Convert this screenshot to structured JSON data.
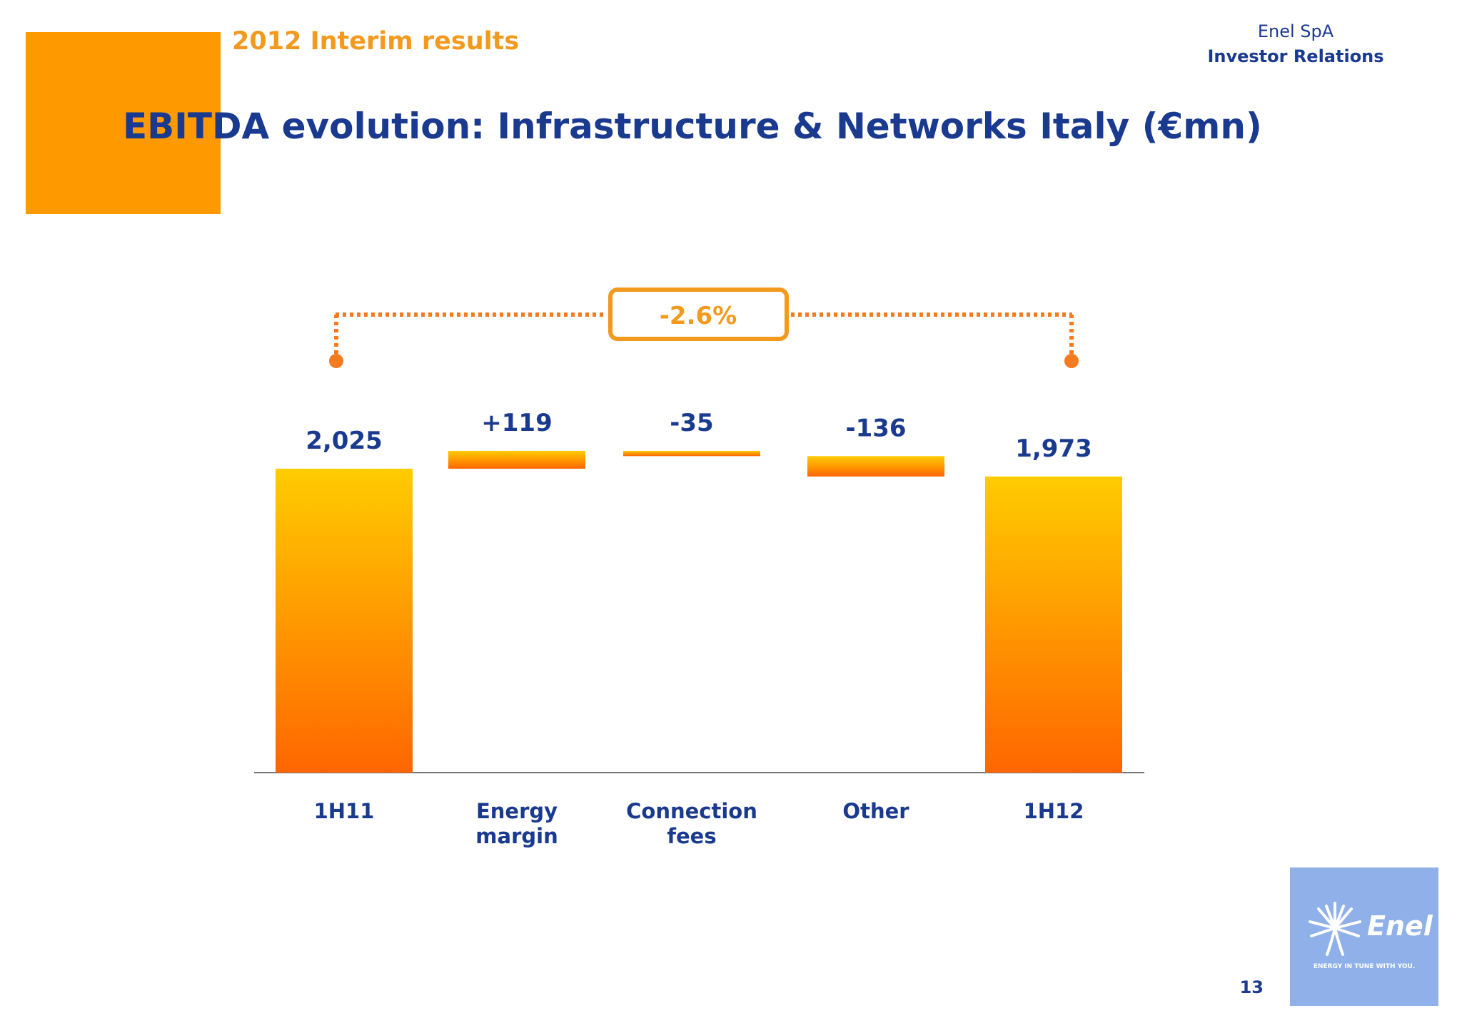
{
  "header": {
    "subtitle": "2012 Interim results",
    "company": "Enel SpA",
    "department": "Investor Relations",
    "title": "EBITDA evolution: Infrastructure & Networks Italy (€mn)"
  },
  "change_badge": "-2.6%",
  "chart_data": {
    "type": "bar",
    "subtype": "waterfall",
    "categories": [
      "1H11",
      "Energy\nmargin",
      "Connection\nfees",
      "Other",
      "1H12"
    ],
    "values": [
      2025,
      119,
      -35,
      -136,
      1973
    ],
    "value_labels": [
      "2,025",
      "+119",
      "-35",
      "-136",
      "1,973"
    ],
    "bar_kinds": [
      "total",
      "delta",
      "delta",
      "delta",
      "total"
    ],
    "title": "EBITDA evolution: Infrastructure & Networks Italy (€mn)",
    "ylim": [
      0,
      2300
    ],
    "grid": false,
    "legend": "none",
    "colors": {
      "bar_top": "#ffcc00",
      "bar_bottom": "#ff6600",
      "label": "#1a3a8f",
      "bracket": "#f47b20",
      "badge": "#f29a1e"
    }
  },
  "logo": {
    "name": "Enel",
    "tagline": "ENERGY IN TUNE WITH YOU.",
    "icon": "enel-tree-icon"
  },
  "page_number": "13"
}
